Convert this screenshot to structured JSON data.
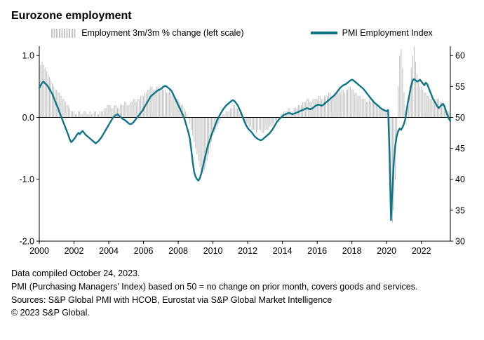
{
  "title": "Eurozone employment",
  "legend": {
    "bars_label": "Employment 3m/3m % change (left scale)",
    "line_label": "PMI Employment Index"
  },
  "footer": {
    "line1": "Data compiled October 24, 2023.",
    "line2": "PMI (Purchasing Managers' Index) based on 50 = no change on prior month, covers goods and services.",
    "line3": "Sources: S&P Global PMI with HCOB, Eurostat via S&P Global Market Intelligence",
    "line4": "© 2023 S&P Global."
  },
  "chart_data": {
    "type": "bar",
    "subtype": "bar+line dual axis",
    "frequency": "monthly",
    "x_start": "2000-01",
    "x_end": "2023-09",
    "n_points": 285,
    "grid": false,
    "zero_line": true,
    "left_axis": {
      "label": "Employment 3m/3m % change",
      "tick_labels": [
        "1.0",
        "0.0",
        "-1.0",
        "-2.0"
      ],
      "tick_values": [
        1.0,
        0.0,
        -1.0,
        -2.0
      ],
      "range": [
        -2.0,
        1.15
      ]
    },
    "right_axis": {
      "label": "PMI Employment Index",
      "tick_labels": [
        "60",
        "55",
        "50",
        "45",
        "40",
        "35",
        "30"
      ],
      "tick_values": [
        60,
        55,
        50,
        45,
        40,
        35,
        30
      ],
      "range": [
        30,
        61.5
      ]
    },
    "x_ticks": [
      {
        "label": "2000",
        "month_index": 0
      },
      {
        "label": "2002",
        "month_index": 24
      },
      {
        "label": "2004",
        "month_index": 48
      },
      {
        "label": "2006",
        "month_index": 72
      },
      {
        "label": "2008",
        "month_index": 96
      },
      {
        "label": "2010",
        "month_index": 120
      },
      {
        "label": "2012",
        "month_index": 144
      },
      {
        "label": "2014",
        "month_index": 168
      },
      {
        "label": "2016",
        "month_index": 192
      },
      {
        "label": "2018",
        "month_index": 216
      },
      {
        "label": "2020",
        "month_index": 240
      },
      {
        "label": "2022",
        "month_index": 264
      }
    ],
    "series": [
      {
        "name": "Employment 3m/3m % change (left scale)",
        "type": "bar",
        "axis": "left",
        "color": "#c4c4c4",
        "values": [
          0.8,
          0.85,
          0.9,
          0.85,
          0.8,
          0.75,
          0.7,
          0.65,
          0.6,
          0.55,
          0.5,
          0.45,
          0.45,
          0.4,
          0.4,
          0.35,
          0.3,
          0.3,
          0.25,
          0.2,
          0.2,
          0.15,
          0.1,
          0.1,
          0.1,
          0.05,
          0.05,
          0.1,
          0.1,
          0.05,
          0.05,
          0.1,
          0.1,
          0.05,
          0.05,
          0.1,
          0.05,
          0.05,
          0.1,
          0.1,
          0.05,
          0.05,
          0.1,
          0.1,
          0.1,
          0.15,
          0.15,
          0.2,
          0.2,
          0.2,
          0.15,
          0.15,
          0.2,
          0.2,
          0.15,
          0.15,
          0.2,
          0.2,
          0.2,
          0.25,
          0.25,
          0.2,
          0.2,
          0.25,
          0.25,
          0.3,
          0.3,
          0.25,
          0.3,
          0.3,
          0.35,
          0.35,
          0.35,
          0.4,
          0.4,
          0.45,
          0.45,
          0.5,
          0.5,
          0.45,
          0.45,
          0.5,
          0.5,
          0.45,
          0.5,
          0.5,
          0.45,
          0.45,
          0.4,
          0.4,
          0.45,
          0.4,
          0.35,
          0.35,
          0.3,
          0.3,
          0.3,
          0.25,
          0.2,
          0.2,
          0.15,
          0.1,
          0.05,
          0.0,
          -0.1,
          -0.2,
          -0.3,
          -0.4,
          -0.5,
          -0.6,
          -0.7,
          -0.8,
          -0.85,
          -0.9,
          -0.85,
          -0.8,
          -0.7,
          -0.6,
          -0.5,
          -0.4,
          -0.3,
          -0.25,
          -0.2,
          -0.15,
          -0.1,
          -0.05,
          0.0,
          0.05,
          0.05,
          0.1,
          0.1,
          0.1,
          0.15,
          0.15,
          0.2,
          0.2,
          0.15,
          0.15,
          0.1,
          0.1,
          0.05,
          0.0,
          -0.05,
          -0.1,
          -0.1,
          -0.15,
          -0.15,
          -0.2,
          -0.2,
          -0.2,
          -0.25,
          -0.2,
          -0.2,
          -0.2,
          -0.25,
          -0.25,
          -0.2,
          -0.2,
          -0.2,
          -0.15,
          -0.15,
          -0.1,
          -0.1,
          -0.05,
          -0.05,
          0.0,
          0.0,
          0.05,
          0.05,
          0.1,
          0.1,
          0.1,
          0.15,
          0.15,
          0.1,
          0.1,
          0.15,
          0.15,
          0.15,
          0.2,
          0.2,
          0.2,
          0.25,
          0.25,
          0.25,
          0.3,
          0.3,
          0.25,
          0.25,
          0.3,
          0.3,
          0.3,
          0.3,
          0.35,
          0.35,
          0.3,
          0.3,
          0.35,
          0.35,
          0.35,
          0.4,
          0.4,
          0.35,
          0.35,
          0.4,
          0.4,
          0.45,
          0.45,
          0.4,
          0.45,
          0.45,
          0.4,
          0.45,
          0.45,
          0.5,
          0.5,
          0.45,
          0.45,
          0.4,
          0.4,
          0.35,
          0.35,
          0.35,
          0.3,
          0.3,
          0.3,
          0.25,
          0.25,
          0.3,
          0.25,
          0.25,
          0.3,
          0.25,
          0.2,
          0.2,
          0.2,
          0.15,
          0.15,
          0.15,
          0.1,
          0.1,
          0.05,
          -0.5,
          -1.4,
          -1.7,
          -1.5,
          -1.0,
          -0.3,
          0.5,
          1.0,
          1.1,
          0.8,
          0.4,
          0.1,
          0.0,
          0.2,
          0.5,
          0.8,
          1.0,
          1.15,
          0.9,
          0.7,
          0.6,
          0.5,
          0.5,
          0.45,
          0.4,
          0.4,
          0.35,
          0.35,
          0.3,
          0.3,
          0.25,
          0.25,
          0.3,
          0.3,
          0.3,
          0.25,
          0.25,
          0.2,
          0.2,
          0.15,
          0.1,
          0.1,
          0.05
        ]
      },
      {
        "name": "PMI Employment Index",
        "type": "line",
        "axis": "right",
        "color": "#0e7588",
        "values": [
          54.8,
          55.2,
          55.6,
          55.8,
          55.5,
          55.3,
          55.0,
          54.6,
          54.2,
          53.8,
          53.2,
          52.6,
          52.0,
          51.5,
          50.8,
          50.2,
          49.6,
          49.0,
          48.4,
          47.8,
          47.2,
          46.5,
          46.0,
          46.2,
          46.5,
          46.8,
          47.2,
          47.5,
          47.3,
          47.6,
          47.8,
          47.5,
          47.2,
          47.0,
          46.8,
          46.6,
          46.4,
          46.2,
          46.0,
          45.8,
          46.0,
          46.2,
          46.5,
          46.8,
          47.2,
          47.6,
          48.0,
          48.4,
          48.8,
          49.2,
          49.6,
          50.0,
          50.2,
          50.4,
          50.5,
          50.3,
          50.1,
          49.9,
          49.7,
          49.6,
          49.4,
          49.2,
          49.0,
          48.9,
          49.0,
          49.2,
          49.5,
          49.8,
          50.1,
          50.4,
          50.7,
          51.0,
          51.4,
          51.8,
          52.2,
          52.6,
          53.0,
          53.4,
          53.6,
          53.8,
          54.0,
          54.2,
          54.4,
          54.5,
          54.6,
          54.8,
          55.0,
          55.1,
          55.0,
          54.8,
          54.6,
          54.4,
          54.0,
          53.5,
          53.0,
          52.5,
          52.0,
          51.5,
          51.0,
          50.5,
          50.0,
          49.2,
          48.4,
          47.6,
          46.6,
          44.8,
          42.8,
          41.2,
          40.4,
          40.0,
          39.8,
          40.2,
          41.0,
          42.0,
          43.0,
          44.0,
          45.0,
          45.8,
          46.5,
          47.2,
          47.8,
          48.4,
          49.0,
          49.6,
          50.1,
          50.5,
          50.9,
          51.3,
          51.6,
          51.9,
          52.1,
          52.3,
          52.5,
          52.7,
          52.8,
          52.6,
          52.3,
          52.0,
          51.5,
          51.0,
          50.4,
          49.8,
          49.2,
          48.7,
          48.3,
          48.0,
          47.8,
          47.5,
          47.2,
          46.9,
          46.7,
          46.5,
          46.4,
          46.3,
          46.4,
          46.6,
          46.8,
          47.0,
          47.2,
          47.4,
          47.7,
          48.0,
          48.4,
          48.8,
          49.2,
          49.5,
          49.8,
          50.0,
          50.2,
          50.4,
          50.5,
          50.6,
          50.7,
          50.7,
          50.6,
          50.5,
          50.6,
          50.7,
          50.8,
          50.9,
          51.0,
          51.1,
          51.2,
          51.3,
          51.4,
          51.5,
          51.4,
          51.3,
          51.4,
          51.5,
          51.7,
          51.9,
          52.0,
          52.1,
          52.0,
          51.9,
          52.0,
          52.2,
          52.4,
          52.6,
          52.8,
          53.0,
          53.2,
          53.4,
          53.6,
          53.9,
          54.2,
          54.5,
          54.8,
          55.0,
          55.2,
          55.3,
          55.4,
          55.6,
          55.8,
          56.0,
          56.1,
          56.0,
          55.8,
          55.6,
          55.4,
          55.2,
          55.0,
          54.8,
          54.6,
          54.3,
          54.0,
          53.7,
          53.4,
          53.1,
          52.8,
          52.5,
          52.3,
          52.1,
          51.9,
          51.7,
          51.5,
          51.3,
          51.2,
          51.1,
          51.0,
          51.2,
          44.0,
          33.4,
          38.5,
          43.0,
          45.5,
          47.0,
          47.8,
          48.2,
          48.0,
          48.4,
          49.0,
          49.8,
          51.5,
          52.8,
          54.0,
          55.2,
          56.0,
          56.2,
          56.0,
          55.8,
          55.9,
          56.1,
          55.8,
          55.5,
          55.2,
          55.6,
          55.4,
          54.8,
          54.2,
          53.6,
          53.0,
          52.6,
          52.2,
          51.8,
          51.5,
          51.8,
          52.0,
          52.2,
          51.8,
          51.0,
          50.4,
          49.8,
          49.4
        ]
      }
    ]
  }
}
